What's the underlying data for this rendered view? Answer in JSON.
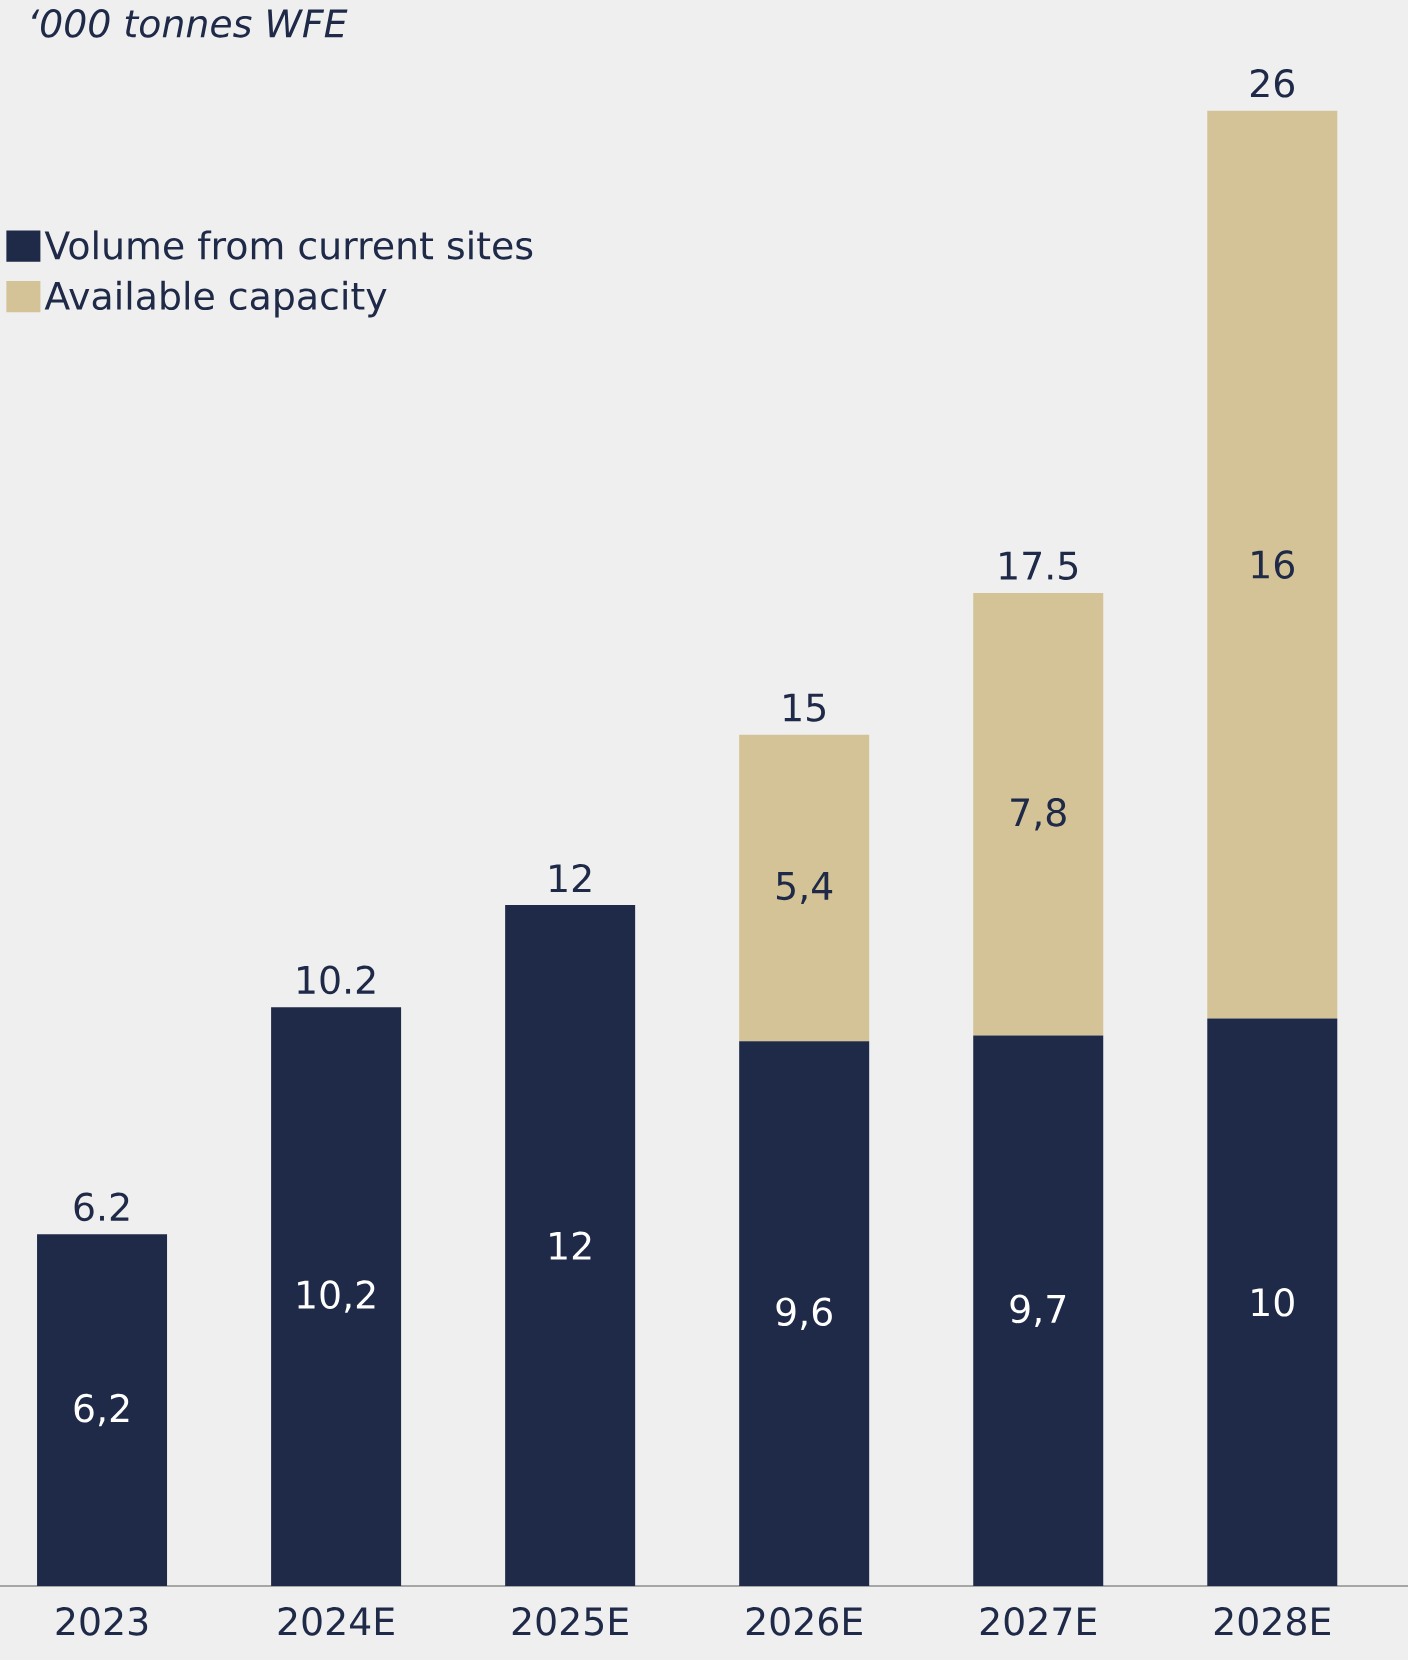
{
  "chart_data": {
    "type": "bar",
    "stacked": true,
    "title": "‘000 tonnes WFE",
    "categories": [
      "2023",
      "2024E",
      "2025E",
      "2026E",
      "2027E",
      "2028E"
    ],
    "series": [
      {
        "name": "Volume from current sites",
        "color": "#1f2a48",
        "values": [
          6.2,
          10.2,
          12,
          9.6,
          9.7,
          10
        ],
        "value_labels": [
          "6,2",
          "10,2",
          "12",
          "9,6",
          "9,7",
          "10"
        ]
      },
      {
        "name": "Available capacity",
        "color": "#d4c396",
        "values": [
          null,
          null,
          null,
          5.4,
          7.8,
          16
        ],
        "value_labels": [
          null,
          null,
          null,
          "5,4",
          "7,8",
          "16"
        ]
      }
    ],
    "totals": [
      "6.2",
      "10.2",
      "12",
      "15",
      "17.5",
      "26"
    ],
    "tick_labels": "x",
    "legend": "top left"
  }
}
